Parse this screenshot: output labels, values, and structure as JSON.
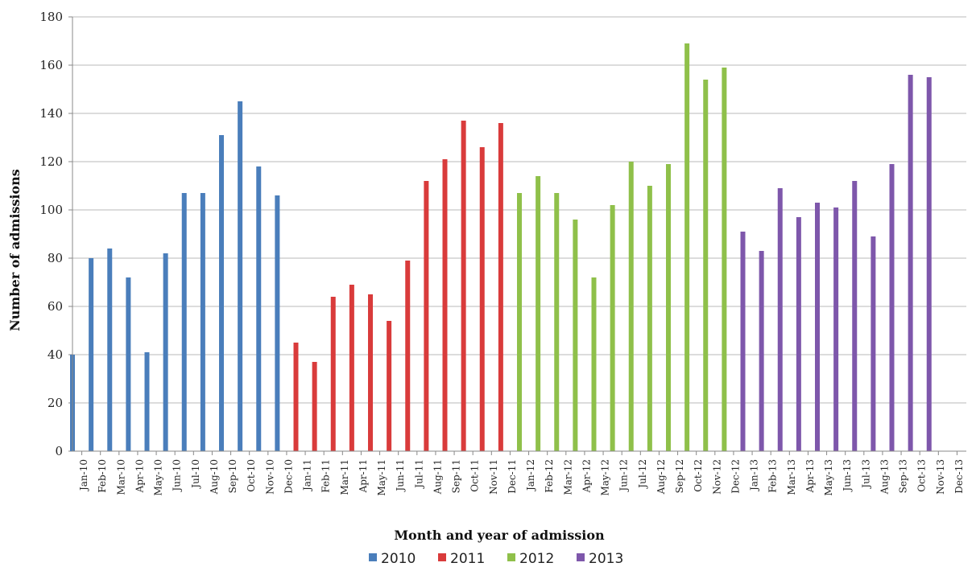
{
  "chart_data": {
    "type": "bar",
    "title": "",
    "xlabel": "Month and year of admission",
    "ylabel": "Number of admissions",
    "ylim": [
      0,
      180
    ],
    "yticks": [
      "0",
      "20",
      "40",
      "60",
      "80",
      "100",
      "120",
      "140",
      "160",
      "180"
    ],
    "grid": true,
    "legend_position": "bottom",
    "categories": [
      "Jan-10",
      "Feb-10",
      "Mar-10",
      "Apr-10",
      "May-10",
      "Jun-10",
      "Jul-10",
      "Aug-10",
      "Sep-10",
      "Oct-10",
      "Nov-10",
      "Dec-10",
      "Jan-11",
      "Feb-11",
      "Mar-11",
      "Apr-11",
      "May-11",
      "Jun-11",
      "Jul-11",
      "Aug-11",
      "Sep-11",
      "Oct-11",
      "Nov-11",
      "Dec-11",
      "Jan-12",
      "Feb-12",
      "Mar-12",
      "Apr-12",
      "May-12",
      "Jun-12",
      "Jul-12",
      "Aug-12",
      "Sep-12",
      "Oct-12",
      "Nov-12",
      "Dec-12",
      "Jan-13",
      "Feb-13",
      "Mar-13",
      "Apr-13",
      "May-13",
      "Jun-13",
      "Jul-13",
      "Aug-13",
      "Sep-13",
      "Oct-13",
      "Nov-13",
      "Dec-13"
    ],
    "series": [
      {
        "name": "2010",
        "color": "#4a7ebb",
        "values": [
          40,
          80,
          84,
          72,
          41,
          82,
          107,
          107,
          131,
          145,
          118,
          106,
          null,
          null,
          null,
          null,
          null,
          null,
          null,
          null,
          null,
          null,
          null,
          null,
          null,
          null,
          null,
          null,
          null,
          null,
          null,
          null,
          null,
          null,
          null,
          null,
          null,
          null,
          null,
          null,
          null,
          null,
          null,
          null,
          null,
          null,
          null,
          null
        ]
      },
      {
        "name": "2011",
        "color": "#d93b3b",
        "values": [
          null,
          null,
          null,
          null,
          null,
          null,
          null,
          null,
          null,
          null,
          null,
          null,
          45,
          37,
          64,
          69,
          65,
          54,
          79,
          112,
          121,
          137,
          126,
          136,
          null,
          null,
          null,
          null,
          null,
          null,
          null,
          null,
          null,
          null,
          null,
          null,
          null,
          null,
          null,
          null,
          null,
          null,
          null,
          null,
          null,
          null,
          null,
          null
        ]
      },
      {
        "name": "2012",
        "color": "#8fc04a",
        "values": [
          null,
          null,
          null,
          null,
          null,
          null,
          null,
          null,
          null,
          null,
          null,
          null,
          null,
          null,
          null,
          null,
          null,
          null,
          null,
          null,
          null,
          null,
          null,
          null,
          107,
          114,
          107,
          96,
          72,
          102,
          120,
          110,
          119,
          169,
          154,
          159,
          null,
          null,
          null,
          null,
          null,
          null,
          null,
          null,
          null,
          null,
          null,
          null
        ]
      },
      {
        "name": "2013",
        "color": "#7e57ab",
        "values": [
          null,
          null,
          null,
          null,
          null,
          null,
          null,
          null,
          null,
          null,
          null,
          null,
          null,
          null,
          null,
          null,
          null,
          null,
          null,
          null,
          null,
          null,
          null,
          null,
          null,
          null,
          null,
          null,
          null,
          null,
          null,
          null,
          null,
          null,
          null,
          null,
          91,
          83,
          109,
          97,
          103,
          101,
          112,
          89,
          119,
          156,
          155,
          null
        ]
      }
    ]
  }
}
